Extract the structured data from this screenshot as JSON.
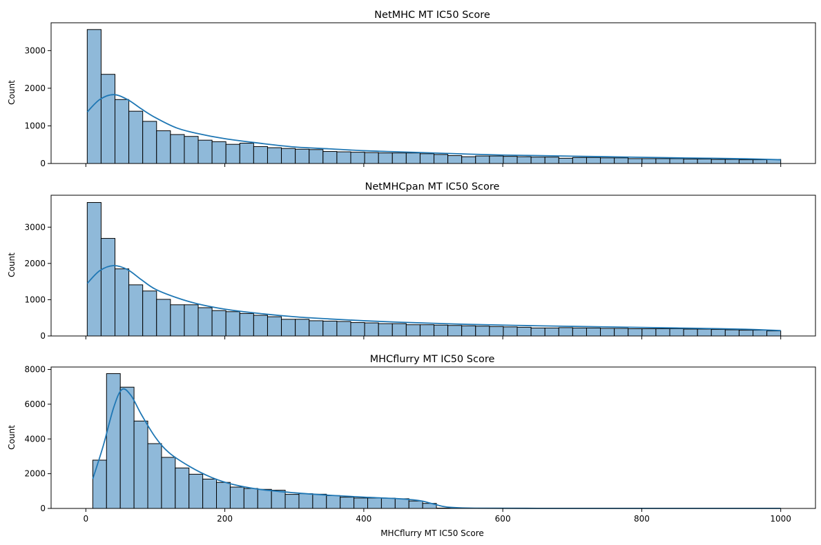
{
  "chart_data": [
    {
      "type": "bar",
      "title": "NetMHC MT IC50 Score",
      "xlabel": "",
      "ylabel": "Count",
      "xlim": [
        -50,
        1050
      ],
      "ylim": [
        0,
        3740
      ],
      "xticks": [
        0,
        200,
        400,
        600,
        800,
        1000
      ],
      "show_xtick_labels": false,
      "yticks": [
        0,
        1000,
        2000,
        3000
      ],
      "ytick_labels": [
        "0",
        "1000",
        "2000",
        "3000"
      ],
      "bin_start": 2,
      "bin_width": 19.96,
      "counts": [
        3560,
        2370,
        1700,
        1390,
        1120,
        870,
        770,
        720,
        620,
        580,
        510,
        540,
        450,
        420,
        400,
        380,
        370,
        320,
        310,
        300,
        290,
        280,
        280,
        280,
        260,
        240,
        210,
        180,
        200,
        200,
        190,
        180,
        170,
        170,
        140,
        160,
        160,
        150,
        150,
        130,
        130,
        130,
        130,
        120,
        120,
        110,
        110,
        100,
        100,
        110
      ],
      "kde": [
        [
          2,
          1370
        ],
        [
          20,
          1700
        ],
        [
          40,
          1830
        ],
        [
          60,
          1700
        ],
        [
          80,
          1450
        ],
        [
          100,
          1220
        ],
        [
          130,
          950
        ],
        [
          160,
          800
        ],
        [
          200,
          660
        ],
        [
          250,
          540
        ],
        [
          300,
          440
        ],
        [
          350,
          390
        ],
        [
          400,
          340
        ],
        [
          450,
          310
        ],
        [
          500,
          280
        ],
        [
          550,
          250
        ],
        [
          600,
          225
        ],
        [
          650,
          210
        ],
        [
          700,
          195
        ],
        [
          750,
          180
        ],
        [
          800,
          165
        ],
        [
          850,
          150
        ],
        [
          900,
          140
        ],
        [
          950,
          125
        ],
        [
          1000,
          100
        ]
      ]
    },
    {
      "type": "bar",
      "title": "NetMHCpan MT IC50 Score",
      "xlabel": "",
      "ylabel": "Count",
      "xlim": [
        -50,
        1050
      ],
      "ylim": [
        0,
        3880
      ],
      "xticks": [
        0,
        200,
        400,
        600,
        800,
        1000
      ],
      "show_xtick_labels": false,
      "yticks": [
        0,
        1000,
        2000,
        3000
      ],
      "ytick_labels": [
        "0",
        "1000",
        "2000",
        "3000"
      ],
      "bin_start": 2,
      "bin_width": 19.96,
      "counts": [
        3680,
        2690,
        1850,
        1410,
        1240,
        1010,
        860,
        860,
        780,
        700,
        670,
        620,
        570,
        530,
        460,
        460,
        420,
        410,
        400,
        370,
        360,
        340,
        340,
        310,
        310,
        300,
        290,
        280,
        270,
        260,
        250,
        240,
        220,
        220,
        230,
        220,
        220,
        210,
        210,
        200,
        200,
        200,
        200,
        190,
        190,
        180,
        170,
        160,
        160,
        140
      ],
      "kde": [
        [
          2,
          1450
        ],
        [
          20,
          1800
        ],
        [
          40,
          1940
        ],
        [
          60,
          1830
        ],
        [
          80,
          1550
        ],
        [
          100,
          1290
        ],
        [
          130,
          1060
        ],
        [
          160,
          890
        ],
        [
          200,
          740
        ],
        [
          250,
          620
        ],
        [
          300,
          530
        ],
        [
          350,
          470
        ],
        [
          400,
          420
        ],
        [
          450,
          380
        ],
        [
          500,
          350
        ],
        [
          550,
          320
        ],
        [
          600,
          300
        ],
        [
          650,
          280
        ],
        [
          700,
          265
        ],
        [
          750,
          250
        ],
        [
          800,
          235
        ],
        [
          850,
          220
        ],
        [
          900,
          205
        ],
        [
          950,
          185
        ],
        [
          1000,
          150
        ]
      ]
    },
    {
      "type": "bar",
      "title": "MHCflurry MT IC50 Score",
      "xlabel": "MHCflurry MT IC50 Score",
      "ylabel": "Count",
      "xlim": [
        -50,
        1050
      ],
      "ylim": [
        0,
        8140
      ],
      "xticks": [
        0,
        200,
        400,
        600,
        800,
        1000
      ],
      "show_xtick_labels": true,
      "xtick_labels": [
        "0",
        "200",
        "400",
        "600",
        "800",
        "1000"
      ],
      "yticks": [
        0,
        2000,
        4000,
        6000,
        8000
      ],
      "ytick_labels": [
        "0",
        "2000",
        "4000",
        "6000",
        "8000"
      ],
      "bin_start": 10,
      "bin_width": 19.78,
      "counts": [
        2780,
        7760,
        6980,
        5030,
        3730,
        2940,
        2330,
        1970,
        1690,
        1500,
        1230,
        1150,
        1100,
        1050,
        810,
        850,
        820,
        740,
        650,
        600,
        600,
        590,
        560,
        430,
        290,
        20,
        15,
        15,
        10,
        10,
        10,
        10,
        10,
        10,
        10,
        10,
        10,
        10,
        10,
        10,
        10,
        10,
        10,
        10,
        10,
        10,
        10,
        10,
        10,
        10
      ],
      "kde": [
        [
          10,
          1700
        ],
        [
          25,
          3600
        ],
        [
          40,
          5800
        ],
        [
          52,
          6850
        ],
        [
          65,
          6500
        ],
        [
          80,
          5400
        ],
        [
          100,
          4100
        ],
        [
          120,
          3200
        ],
        [
          150,
          2400
        ],
        [
          180,
          1800
        ],
        [
          210,
          1400
        ],
        [
          250,
          1100
        ],
        [
          300,
          900
        ],
        [
          350,
          760
        ],
        [
          400,
          650
        ],
        [
          450,
          560
        ],
        [
          480,
          450
        ],
        [
          500,
          260
        ],
        [
          520,
          80
        ],
        [
          560,
          15
        ],
        [
          650,
          5
        ],
        [
          800,
          5
        ],
        [
          1000,
          5
        ]
      ]
    }
  ]
}
